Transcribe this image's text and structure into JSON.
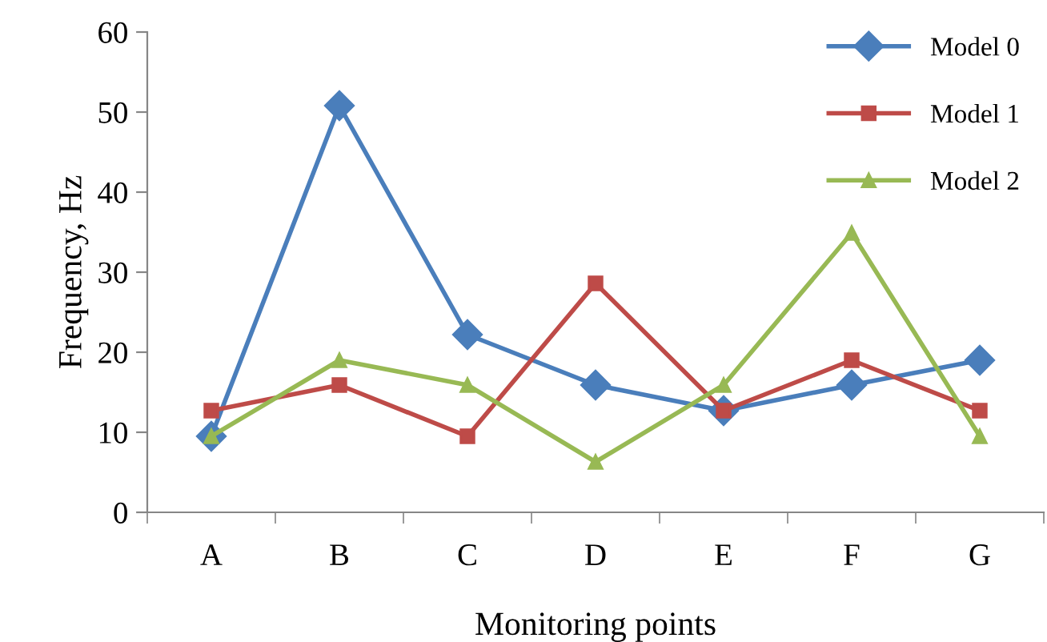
{
  "chart_data": {
    "type": "line",
    "xlabel": "Monitoring points",
    "ylabel": "Frequency, Hz",
    "categories": [
      "A",
      "B",
      "C",
      "D",
      "E",
      "F",
      "G"
    ],
    "series": [
      {
        "name": "Model 0",
        "color": "#4a7ebb",
        "marker": "diamond",
        "values": [
          9.5,
          50.8,
          22.2,
          15.9,
          12.7,
          15.9,
          19.0
        ]
      },
      {
        "name": "Model 1",
        "color": "#be4b48",
        "marker": "square",
        "values": [
          12.7,
          15.9,
          9.5,
          28.6,
          12.7,
          19.0,
          12.7
        ]
      },
      {
        "name": "Model 2",
        "color": "#98b954",
        "marker": "triangle",
        "values": [
          9.5,
          19.0,
          15.9,
          6.3,
          15.9,
          34.9,
          9.5
        ]
      }
    ],
    "ylim": [
      0,
      60
    ],
    "yticks": [
      0,
      10,
      20,
      30,
      40,
      50,
      60
    ],
    "grid": false,
    "legend": "top right",
    "line_style": "solid"
  }
}
